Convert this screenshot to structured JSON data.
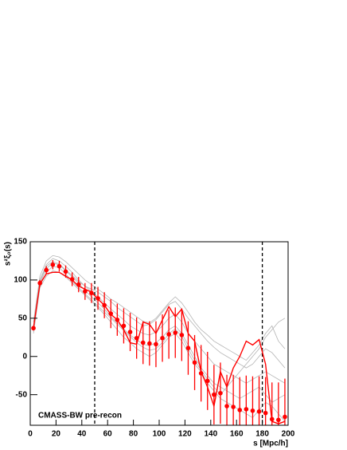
{
  "chart_data": {
    "type": "line",
    "x_label": "s [Mpc/h]",
    "y_label": "s²ξ₀(s)",
    "annotation": "CMASS-BW pre-recon",
    "x": [
      2.5,
      7.5,
      12.5,
      17.5,
      22.5,
      27.5,
      32.5,
      37.5,
      42.5,
      47.5,
      52.5,
      57.5,
      62.5,
      67.5,
      72.5,
      77.5,
      82.5,
      87.5,
      92.5,
      97.5,
      102.5,
      107.5,
      112.5,
      117.5,
      122.5,
      127.5,
      132.5,
      137.5,
      142.5,
      147.5,
      152.5,
      157.5,
      162.5,
      167.5,
      172.5,
      177.5,
      182.5,
      187.5,
      192.5,
      197.5
    ],
    "xlim": [
      0,
      200
    ],
    "xticks": [
      0,
      20,
      40,
      60,
      80,
      100,
      120,
      140,
      160,
      180,
      200
    ],
    "ylim": [
      -90,
      150
    ],
    "yticks": [
      -50,
      0,
      50,
      100,
      150
    ],
    "vlines": [
      50,
      180
    ],
    "mocks": {
      "color": "#b4b4b4",
      "values": [
        [
          40,
          100,
          120,
          128,
          125,
          118,
          110,
          100,
          92,
          85,
          78,
          70,
          62,
          55,
          48,
          40,
          35,
          30,
          28,
          32,
          40,
          50,
          55,
          45,
          30,
          20,
          10,
          0,
          -10,
          -15,
          -20,
          -25,
          -30,
          -35,
          -30,
          -25,
          -20,
          -25,
          -30,
          -35
        ],
        [
          30,
          90,
          105,
          112,
          110,
          104,
          96,
          88,
          80,
          72,
          64,
          55,
          45,
          35,
          25,
          18,
          10,
          5,
          0,
          5,
          15,
          25,
          30,
          20,
          5,
          -10,
          -20,
          -35,
          -45,
          -55,
          -60,
          -65,
          -70,
          -75,
          -80,
          -70,
          -60,
          -65,
          -75,
          -85
        ],
        [
          45,
          105,
          125,
          132,
          130,
          124,
          116,
          108,
          100,
          94,
          88,
          82,
          75,
          70,
          64,
          58,
          52,
          46,
          44,
          50,
          60,
          70,
          78,
          70,
          58,
          45,
          35,
          28,
          20,
          15,
          10,
          5,
          0,
          -5,
          5,
          15,
          30,
          40,
          20,
          10
        ],
        [
          35,
          95,
          115,
          122,
          120,
          112,
          104,
          96,
          86,
          78,
          70,
          62,
          52,
          44,
          36,
          28,
          22,
          16,
          14,
          18,
          25,
          35,
          40,
          30,
          15,
          0,
          -15,
          -25,
          -35,
          -40,
          -45,
          -50,
          -55,
          -50,
          -45,
          -40,
          -50,
          -60,
          -55,
          -50
        ],
        [
          38,
          98,
          118,
          124,
          121,
          113,
          106,
          98,
          92,
          88,
          84,
          78,
          72,
          64,
          58,
          52,
          46,
          40,
          42,
          48,
          58,
          68,
          72,
          62,
          50,
          40,
          30,
          20,
          12,
          5,
          0,
          -5,
          -10,
          -15,
          -10,
          0,
          10,
          5,
          -5,
          -15
        ],
        [
          32,
          92,
          110,
          118,
          116,
          108,
          98,
          90,
          82,
          74,
          66,
          58,
          50,
          42,
          34,
          26,
          18,
          12,
          8,
          10,
          18,
          30,
          36,
          26,
          10,
          -5,
          -18,
          -30,
          -40,
          -50,
          -40,
          -30,
          -20,
          -10,
          0,
          10,
          25,
          35,
          45,
          50
        ]
      ]
    },
    "series": [
      {
        "color": "#ff0000",
        "values": [
          37,
          96,
          113,
          120,
          118,
          111,
          101,
          94,
          85,
          83,
          76,
          67,
          56,
          48,
          40,
          32,
          24,
          18,
          17,
          16,
          24,
          29,
          31,
          28,
          11,
          -8,
          -22,
          -32,
          -50,
          -48,
          -65,
          -66,
          -70,
          -69,
          -71,
          -72,
          -74,
          -82,
          -83,
          -79
        ],
        "errors": [
          3,
          4,
          5,
          6,
          7,
          8,
          9,
          10,
          11,
          13,
          15,
          17,
          19,
          21,
          23,
          25,
          27,
          28,
          29,
          30,
          31,
          32,
          33,
          34,
          35,
          36,
          37,
          38,
          39,
          40,
          41,
          42,
          43,
          44,
          45,
          46,
          47,
          48,
          49,
          50
        ]
      },
      {
        "color": "#ff0000",
        "values": [
          37,
          95,
          108,
          110,
          110,
          105,
          100,
          92,
          88,
          84,
          75,
          67,
          55,
          48,
          35,
          18,
          16,
          45,
          42,
          30,
          48,
          65,
          52,
          62,
          30,
          20,
          -20,
          -40,
          -65,
          -20,
          -40,
          -15,
          0,
          20,
          15,
          22,
          -10,
          -85,
          -88,
          -85
        ]
      }
    ]
  }
}
